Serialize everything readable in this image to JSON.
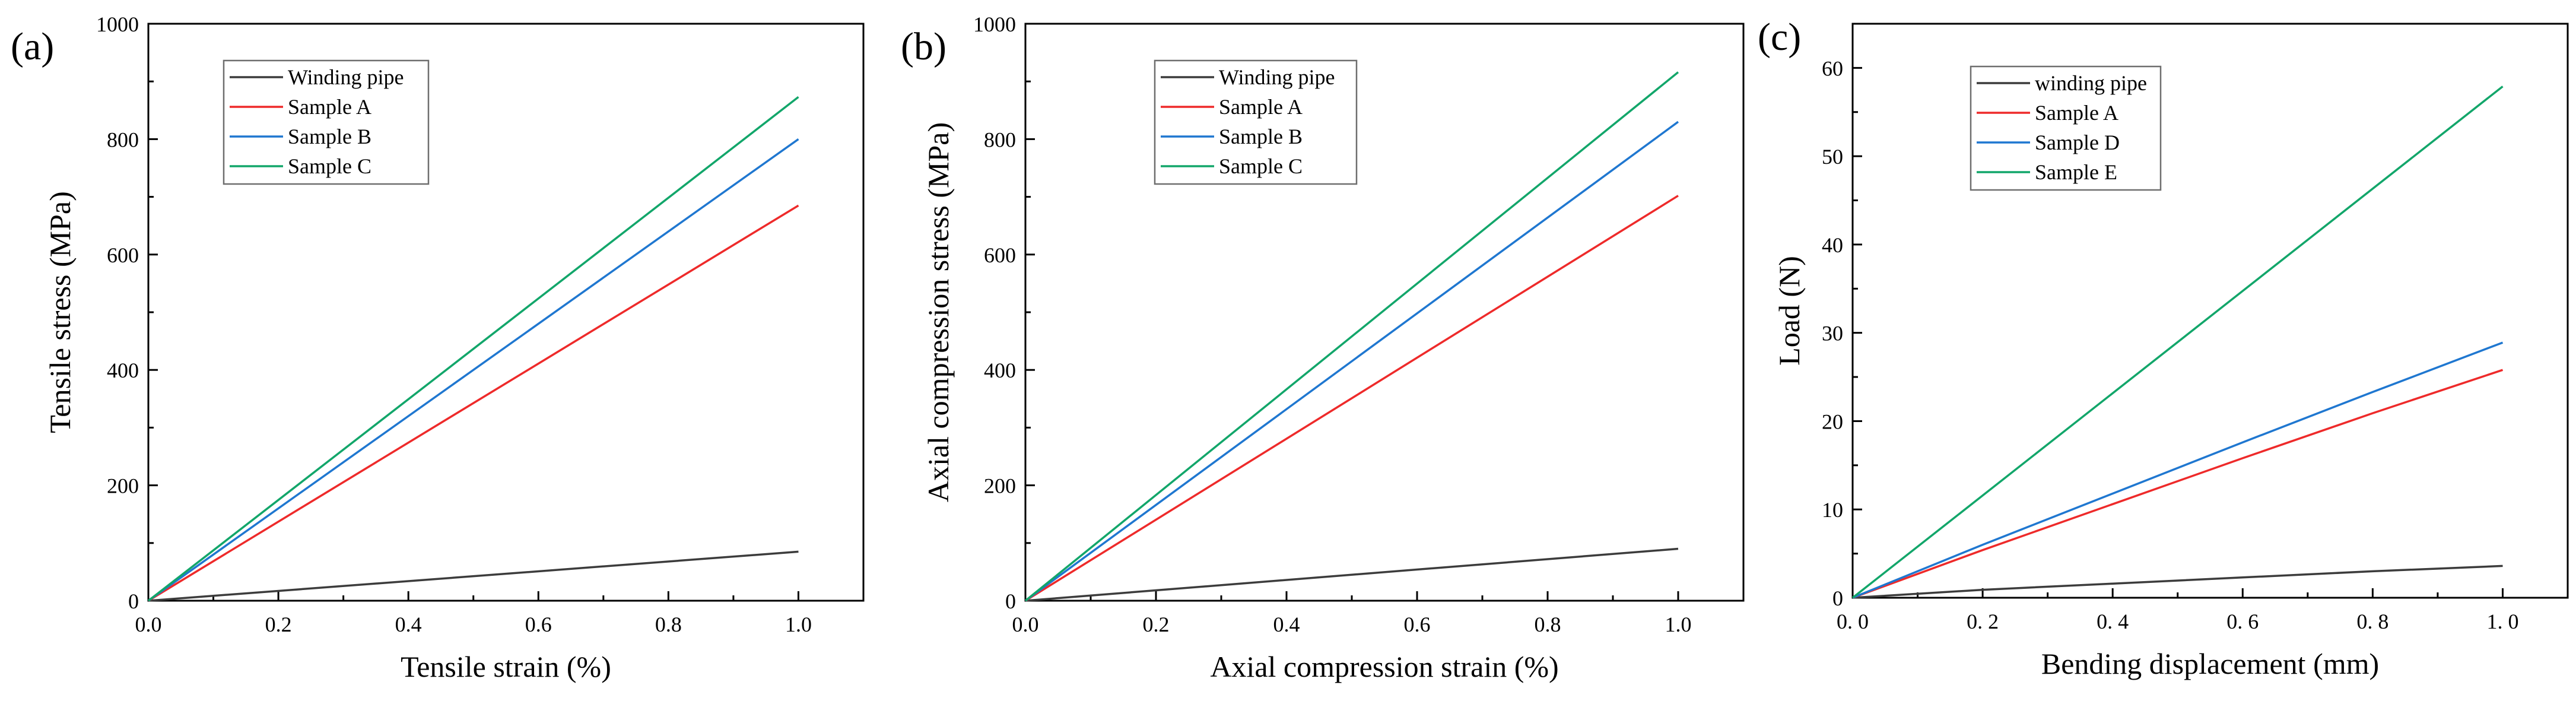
{
  "figure": {
    "panel_count": 3
  },
  "chart_data": [
    {
      "type": "line",
      "panel_label": "(a)",
      "title": "",
      "xlabel": "Tensile strain (%)",
      "ylabel": "Tensile stress (MPa)",
      "xlim": [
        0,
        1.1
      ],
      "ylim": [
        0,
        1000
      ],
      "xticks": [
        0.0,
        0.2,
        0.4,
        0.6,
        0.8,
        1.0
      ],
      "xtick_labels": [
        "0.0",
        "0.2",
        "0.4",
        "0.6",
        "0.8",
        "1.0"
      ],
      "yticks": [
        0,
        200,
        400,
        600,
        800,
        1000
      ],
      "ytick_labels": [
        "0",
        "200",
        "400",
        "600",
        "800",
        "1000"
      ],
      "legend_position": "top-left",
      "series": [
        {
          "name": "Winding pipe",
          "color": "#3c3c3c",
          "x": [
            0,
            1.0
          ],
          "y": [
            0,
            85
          ]
        },
        {
          "name": "Sample A",
          "color": "#ee2a2a",
          "x": [
            0,
            1.0
          ],
          "y": [
            0,
            685
          ]
        },
        {
          "name": "Sample B",
          "color": "#1f77d0",
          "x": [
            0,
            1.0
          ],
          "y": [
            0,
            800
          ]
        },
        {
          "name": "Sample C",
          "color": "#12a66a",
          "x": [
            0,
            1.0
          ],
          "y": [
            0,
            873
          ]
        }
      ]
    },
    {
      "type": "line",
      "panel_label": "(b)",
      "title": "",
      "xlabel": "Axial compression strain (%)",
      "ylabel": "Axial compression stress (MPa)",
      "xlim": [
        0,
        1.1
      ],
      "ylim": [
        0,
        1000
      ],
      "xticks": [
        0.0,
        0.2,
        0.4,
        0.6,
        0.8,
        1.0
      ],
      "xtick_labels": [
        "0.0",
        "0.2",
        "0.4",
        "0.6",
        "0.8",
        "1.0"
      ],
      "yticks": [
        0,
        200,
        400,
        600,
        800,
        1000
      ],
      "ytick_labels": [
        "0",
        "200",
        "400",
        "600",
        "800",
        "1000"
      ],
      "legend_position": "top-left",
      "series": [
        {
          "name": "Winding pipe",
          "color": "#3c3c3c",
          "x": [
            0,
            1.0
          ],
          "y": [
            0,
            90
          ]
        },
        {
          "name": "Sample A",
          "color": "#ee2a2a",
          "x": [
            0,
            1.0
          ],
          "y": [
            0,
            702
          ]
        },
        {
          "name": "Sample B",
          "color": "#1f77d0",
          "x": [
            0,
            1.0
          ],
          "y": [
            0,
            830
          ]
        },
        {
          "name": "Sample C",
          "color": "#12a66a",
          "x": [
            0,
            1.0
          ],
          "y": [
            0,
            916
          ]
        }
      ]
    },
    {
      "type": "line",
      "panel_label": "(c)",
      "title": "",
      "xlabel": "Bending displacement (mm)",
      "ylabel": "Load (N)",
      "xlim": [
        0,
        1.1
      ],
      "ylim": [
        0,
        65
      ],
      "xticks": [
        0.0,
        0.2,
        0.4,
        0.6,
        0.8,
        1.0
      ],
      "xtick_labels": [
        "0. 0",
        "0. 2",
        "0. 4",
        "0. 6",
        "0. 8",
        "1. 0"
      ],
      "yticks": [
        0,
        10,
        20,
        30,
        40,
        50,
        60
      ],
      "ytick_labels": [
        "0",
        "10",
        "20",
        "30",
        "40",
        "50",
        "60"
      ],
      "legend_position": "top-left",
      "series": [
        {
          "name": "winding pipe",
          "color": "#3c3c3c",
          "x": [
            0,
            0.2,
            0.4,
            0.6,
            0.8,
            1.0
          ],
          "y": [
            0,
            0.9,
            1.6,
            2.3,
            3.0,
            3.6
          ]
        },
        {
          "name": "Sample A",
          "color": "#ee2a2a",
          "x": [
            0,
            0.2,
            0.4,
            0.6,
            0.8,
            1.0
          ],
          "y": [
            0,
            5.4,
            10.6,
            15.8,
            20.9,
            25.8
          ]
        },
        {
          "name": "Sample D",
          "color": "#1f77d0",
          "x": [
            0,
            0.2,
            0.4,
            0.6,
            0.8,
            1.0
          ],
          "y": [
            0,
            6.0,
            11.8,
            17.6,
            23.3,
            28.9
          ]
        },
        {
          "name": "Sample E",
          "color": "#12a66a",
          "x": [
            0,
            1.0
          ],
          "y": [
            0,
            57.9
          ]
        }
      ]
    }
  ]
}
